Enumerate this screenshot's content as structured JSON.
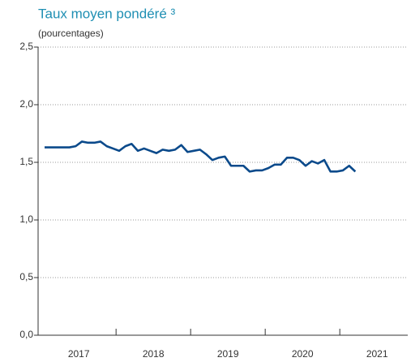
{
  "chart_data": {
    "type": "line",
    "title": "Taux moyen pondéré ³",
    "subtitle": "(pourcentages)",
    "categories": [
      null,
      null,
      null,
      null,
      null,
      null,
      "2017",
      null,
      null,
      null,
      null,
      null,
      null,
      null,
      null,
      null,
      null,
      null,
      "2018",
      null,
      null,
      null,
      null,
      null,
      null,
      null,
      null,
      null,
      null,
      null,
      "2019",
      null,
      null,
      null,
      null,
      null,
      null,
      null,
      null,
      null,
      null,
      null,
      "2020",
      null,
      null,
      null,
      null,
      null,
      null,
      null,
      null,
      null,
      null,
      null,
      "2021",
      null,
      null,
      null,
      null,
      null
    ],
    "series": [
      {
        "name": "Taux moyen pondéré",
        "color": "#0b4a8b",
        "values": [
          1.63,
          1.63,
          1.63,
          1.63,
          1.63,
          1.64,
          1.68,
          1.67,
          1.67,
          1.68,
          1.64,
          1.62,
          1.6,
          1.64,
          1.66,
          1.6,
          1.62,
          1.6,
          1.58,
          1.61,
          1.6,
          1.61,
          1.65,
          1.59,
          1.6,
          1.61,
          1.57,
          1.52,
          1.54,
          1.55,
          1.47,
          1.47,
          1.47,
          1.42,
          1.43,
          1.43,
          1.45,
          1.48,
          1.48,
          1.54,
          1.54,
          1.52,
          1.47,
          1.51,
          1.49,
          1.52,
          1.42,
          1.42,
          1.43,
          1.47,
          1.42,
          null,
          null,
          null,
          null,
          null,
          null,
          null,
          null,
          null
        ]
      }
    ],
    "ylim": [
      0,
      2.5
    ],
    "yticks": [
      {
        "value": 0,
        "label": "0,0"
      },
      {
        "value": 0.5,
        "label": "0,5"
      },
      {
        "value": 1,
        "label": "1,0"
      },
      {
        "value": 1.5,
        "label": "1,5"
      },
      {
        "value": 2,
        "label": "2,0"
      },
      {
        "value": 2.5,
        "label": "2,5"
      }
    ],
    "grid": true
  }
}
